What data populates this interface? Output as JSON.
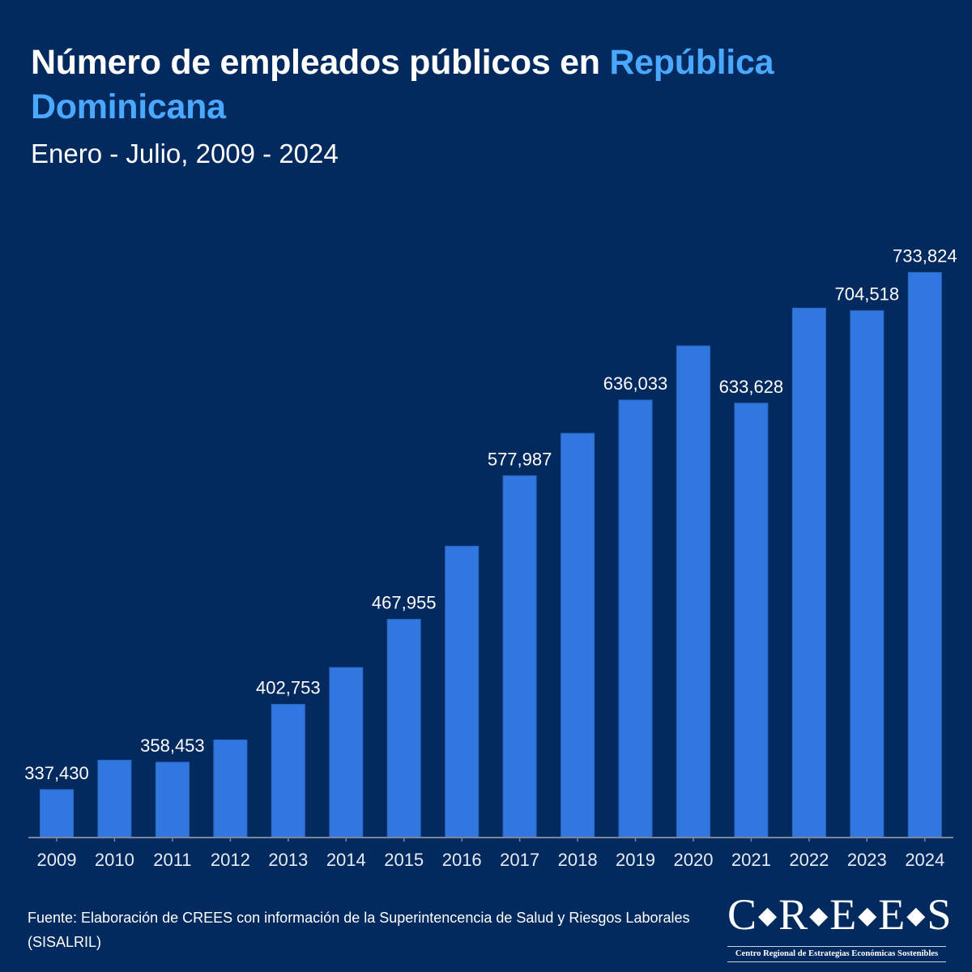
{
  "header": {
    "title_main": "Número de empleados públicos en ",
    "title_accent": "República Dominicana",
    "subtitle": "Enero - Julio, 2009 - 2024"
  },
  "colors": {
    "background": "#032a5e",
    "bar": "#3177e0",
    "accent": "#4aa8ff",
    "axis": "#7a8699"
  },
  "chart_data": {
    "type": "bar",
    "title": "Número de empleados públicos en República Dominicana",
    "subtitle": "Enero - Julio, 2009 - 2024",
    "xlabel": "",
    "ylabel": "",
    "categories": [
      "2009",
      "2010",
      "2011",
      "2012",
      "2013",
      "2014",
      "2015",
      "2016",
      "2017",
      "2018",
      "2019",
      "2020",
      "2021",
      "2022",
      "2023",
      "2024"
    ],
    "values": [
      337430,
      360000,
      358453,
      375500,
      402753,
      431000,
      467955,
      524000,
      577987,
      610500,
      636033,
      677500,
      633628,
      706500,
      704518,
      733824
    ],
    "data_labels": [
      "337,430",
      "",
      "358,453",
      "",
      "402,753",
      "",
      "467,955",
      "",
      "577,987",
      "",
      "636,033",
      "",
      "633,628",
      "",
      "704,518",
      "733,824"
    ],
    "ylim": [
      300700,
      780000
    ],
    "grid": false,
    "legend": "none",
    "y_axis_visible": false
  },
  "footer": {
    "source": "Fuente: Elaboración de CREES con información de la Superintencencia de Salud y Riesgos Laborales (SISALRIL)",
    "logo_letters": [
      "C",
      "R",
      "E",
      "E",
      "S"
    ],
    "logo_subtitle": "Centro Regional de Estrategias Económicas Sostenibles"
  }
}
